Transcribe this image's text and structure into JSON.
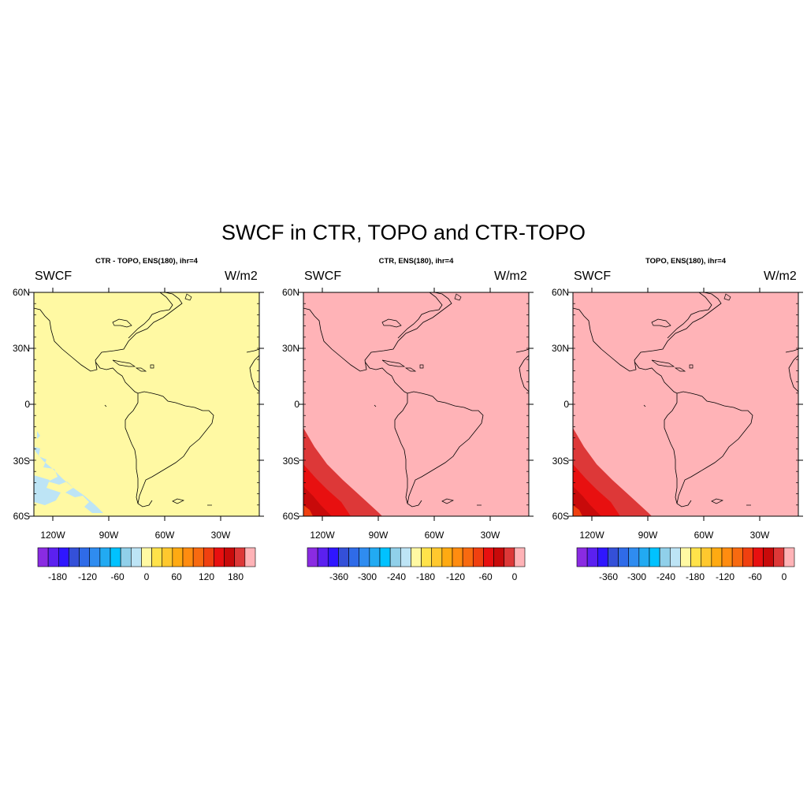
{
  "title": "SWCF in CTR, TOPO and CTR-TOPO",
  "panels": [
    {
      "title": "CTR - TOPO, ENS(180), ihr=4",
      "left_label": "SWCF",
      "right_label": "W/m2",
      "lat_labels": [
        "60N",
        "30N",
        "0",
        "30S",
        "60S"
      ],
      "lon_labels": [
        "120W",
        "90W",
        "60W",
        "30W"
      ],
      "field_color": "#fff9a3",
      "colorbar_colors": [
        "#8a2be2",
        "#5b20f0",
        "#2f16ff",
        "#3450d8",
        "#2f6be8",
        "#2f8cf0",
        "#22aaf2",
        "#00c2ff",
        "#90d0ea",
        "#bde4f5",
        "#fff9a3",
        "#ffe24a",
        "#ffc82e",
        "#ffaa12",
        "#ff8c10",
        "#f86a10",
        "#f04010",
        "#e81010",
        "#c80a0a",
        "#dd3838",
        "#ffb3b7"
      ],
      "colorbar_labels": [
        "-180",
        "-120",
        "-60",
        "0",
        "60",
        "120",
        "180"
      ]
    },
    {
      "title": "CTR, ENS(180), ihr=4",
      "left_label": "SWCF",
      "right_label": "W/m2",
      "lat_labels": [
        "60N",
        "30N",
        "0",
        "30S",
        "60S"
      ],
      "lon_labels": [
        "120W",
        "90W",
        "60W",
        "30W"
      ],
      "field_color": "#ffb3b7",
      "colorbar_colors": [
        "#8a2be2",
        "#5b20f0",
        "#2f16ff",
        "#3450d8",
        "#2f6be8",
        "#2f8cf0",
        "#22aaf2",
        "#00c2ff",
        "#90d0ea",
        "#bde4f5",
        "#fff9a3",
        "#ffe24a",
        "#ffc82e",
        "#ffaa12",
        "#ff8c10",
        "#f86a10",
        "#f04010",
        "#e81010",
        "#c80a0a",
        "#dd3838",
        "#ffb3b7"
      ],
      "colorbar_labels": [
        "-360",
        "-300",
        "-240",
        "-180",
        "-120",
        "-60",
        "0"
      ]
    },
    {
      "title": "TOPO, ENS(180), ihr=4",
      "left_label": "SWCF",
      "right_label": "W/m2",
      "lat_labels": [
        "60N",
        "30N",
        "0",
        "30S",
        "60S"
      ],
      "lon_labels": [
        "120W",
        "90W",
        "60W",
        "30W"
      ],
      "field_color": "#ffb3b7",
      "colorbar_colors": [
        "#8a2be2",
        "#5b20f0",
        "#2f16ff",
        "#3450d8",
        "#2f6be8",
        "#2f8cf0",
        "#22aaf2",
        "#00c2ff",
        "#90d0ea",
        "#bde4f5",
        "#fff9a3",
        "#ffe24a",
        "#ffc82e",
        "#ffaa12",
        "#ff8c10",
        "#f86a10",
        "#f04010",
        "#e81010",
        "#c80a0a",
        "#dd3838",
        "#ffb3b7"
      ],
      "colorbar_labels": [
        "-360",
        "-300",
        "-240",
        "-180",
        "-120",
        "-60",
        "0"
      ]
    }
  ]
}
